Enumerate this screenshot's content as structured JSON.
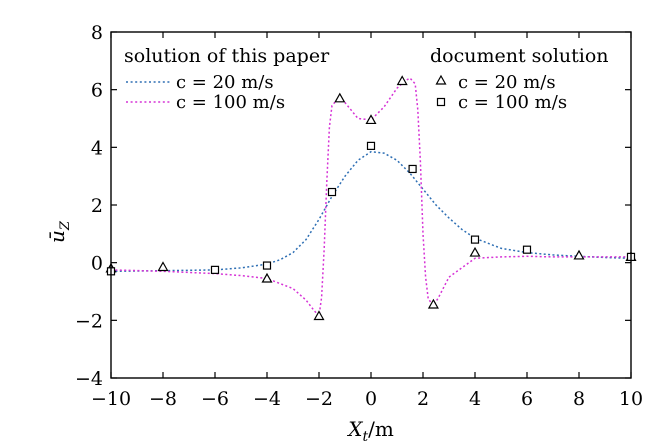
{
  "chart_data": {
    "type": "line",
    "xlabel": "X_t/m",
    "ylabel": "ū_Z",
    "xlim": [
      -10,
      10
    ],
    "ylim": [
      -4,
      8
    ],
    "x_ticks": [
      -10,
      -8,
      -6,
      -4,
      -2,
      0,
      2,
      4,
      6,
      8,
      10
    ],
    "y_ticks": [
      -4,
      -2,
      0,
      2,
      4,
      6,
      8
    ],
    "x_tick_labels": [
      "−10",
      "−8",
      "−6",
      "−4",
      "−2",
      "0",
      "2",
      "4",
      "6",
      "8",
      "10"
    ],
    "y_tick_labels": [
      "−4",
      "−2",
      "0",
      "2",
      "4",
      "6",
      "8"
    ],
    "legend": {
      "placement": "top",
      "group_left_title": "solution of this paper",
      "group_right_title": "document solution",
      "entries_left": [
        "c = 20 m/s",
        "c = 100 m/s"
      ],
      "entries_right": [
        "c = 20 m/s",
        "c = 100 m/s"
      ]
    },
    "series": [
      {
        "name": "c = 20 m/s",
        "group": "solution of this paper",
        "style": "dotted-line",
        "color": "#2e6fb4",
        "x": [
          -10,
          -8,
          -6,
          -5,
          -4,
          -3.5,
          -3,
          -2.5,
          -2,
          -1.5,
          -1,
          -0.5,
          0,
          0.5,
          1,
          1.5,
          2,
          2.5,
          3,
          3.5,
          4,
          5,
          6,
          7,
          8,
          9,
          10
        ],
        "y": [
          -0.3,
          -0.28,
          -0.25,
          -0.18,
          -0.05,
          0.1,
          0.35,
          0.8,
          1.5,
          2.3,
          3.0,
          3.55,
          3.85,
          3.8,
          3.55,
          3.1,
          2.55,
          2.0,
          1.55,
          1.15,
          0.85,
          0.5,
          0.35,
          0.27,
          0.22,
          0.18,
          0.15
        ]
      },
      {
        "name": "c = 100 m/s",
        "group": "solution of this paper",
        "style": "dotted-line",
        "color": "#d633d6",
        "x": [
          -10,
          -8,
          -6,
          -5,
          -4,
          -3,
          -2.5,
          -2.2,
          -2.0,
          -1.9,
          -1.8,
          -1.7,
          -1.6,
          -1.5,
          -1.3,
          -1.0,
          -0.5,
          0,
          0.5,
          1.0,
          1.3,
          1.5,
          1.7,
          1.8,
          1.9,
          2.0,
          2.1,
          2.2,
          2.4,
          2.6,
          3,
          4,
          5,
          6,
          7,
          8,
          9,
          10
        ],
        "y": [
          -0.25,
          -0.3,
          -0.38,
          -0.45,
          -0.55,
          -0.9,
          -1.3,
          -1.65,
          -1.85,
          -1.2,
          0.5,
          2.8,
          4.7,
          5.45,
          5.65,
          5.55,
          5.0,
          4.95,
          5.4,
          6.05,
          6.3,
          6.4,
          6.2,
          5.3,
          3.5,
          1.0,
          -0.5,
          -1.25,
          -1.5,
          -1.2,
          -0.5,
          0.15,
          0.2,
          0.22,
          0.2,
          0.2,
          0.2,
          0.2
        ]
      },
      {
        "name": "c = 20 m/s",
        "group": "document solution",
        "style": "triangle-markers",
        "color": "#000000",
        "x": [
          -10,
          -8,
          -4,
          -2,
          -1.2,
          0,
          1.2,
          2.4,
          4,
          8,
          10
        ],
        "y": [
          -0.2,
          -0.15,
          -0.55,
          -1.85,
          5.7,
          4.95,
          6.3,
          -1.45,
          0.35,
          0.25,
          0.2
        ]
      },
      {
        "name": "c = 100 m/s",
        "group": "document solution",
        "style": "square-markers",
        "color": "#000000",
        "x": [
          -10,
          -6,
          -4,
          -1.5,
          0,
          1.6,
          4,
          6,
          10
        ],
        "y": [
          -0.3,
          -0.25,
          -0.1,
          2.45,
          4.05,
          3.25,
          0.8,
          0.45,
          0.2
        ]
      }
    ]
  }
}
